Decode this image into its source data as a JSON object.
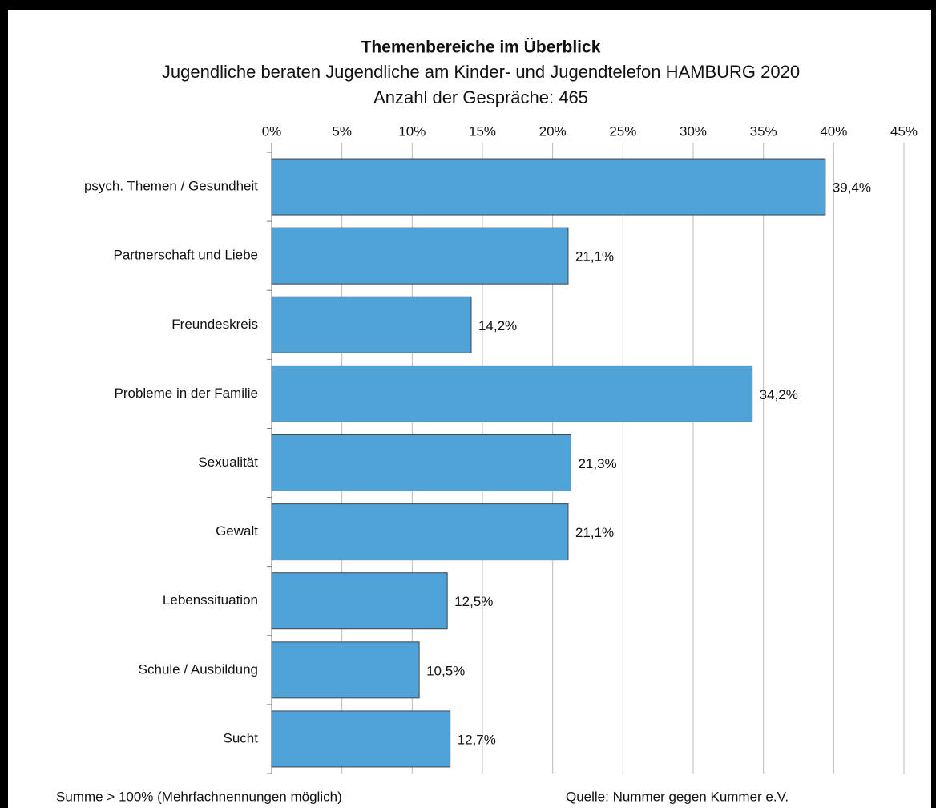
{
  "chart_data": {
    "type": "bar",
    "orientation": "horizontal",
    "title": "Themenbereiche im Überblick",
    "subtitle": [
      "Jugendliche beraten Jugendliche am Kinder- und Jugendtelefon HAMBURG 2020",
      "Anzahl der Gespräche: 465"
    ],
    "categories": [
      "psych. Themen / Gesundheit",
      "Partnerschaft und Liebe",
      "Freundeskreis",
      "Probleme in der Familie",
      "Sexualität",
      "Gewalt",
      "Lebenssituation",
      "Schule / Ausbildung",
      "Sucht"
    ],
    "values": [
      39.4,
      21.1,
      14.2,
      34.2,
      21.3,
      21.1,
      12.5,
      10.5,
      12.7
    ],
    "value_labels": [
      "39,4%",
      "21,1%",
      "14,2%",
      "34,2%",
      "21,3%",
      "21,1%",
      "12,5%",
      "10,5%",
      "12,7%"
    ],
    "color": "#4fa3d9",
    "xlim": [
      0,
      45
    ],
    "xticks": [
      {
        "value": 0,
        "label": "0%"
      },
      {
        "value": 5,
        "label": "5%"
      },
      {
        "value": 10,
        "label": "10%"
      },
      {
        "value": 15,
        "label": "15%"
      },
      {
        "value": 20,
        "label": "20%"
      },
      {
        "value": 25,
        "label": "25%"
      },
      {
        "value": 30,
        "label": "30%"
      },
      {
        "value": 35,
        "label": "35%"
      },
      {
        "value": 40,
        "label": "40%"
      },
      {
        "value": 45,
        "label": "45%"
      }
    ],
    "grid": true,
    "annotations": [
      "Summe > 100% (Mehrfachnennungen möglich)",
      "Quelle: Nummer gegen Kummer e.V."
    ]
  }
}
